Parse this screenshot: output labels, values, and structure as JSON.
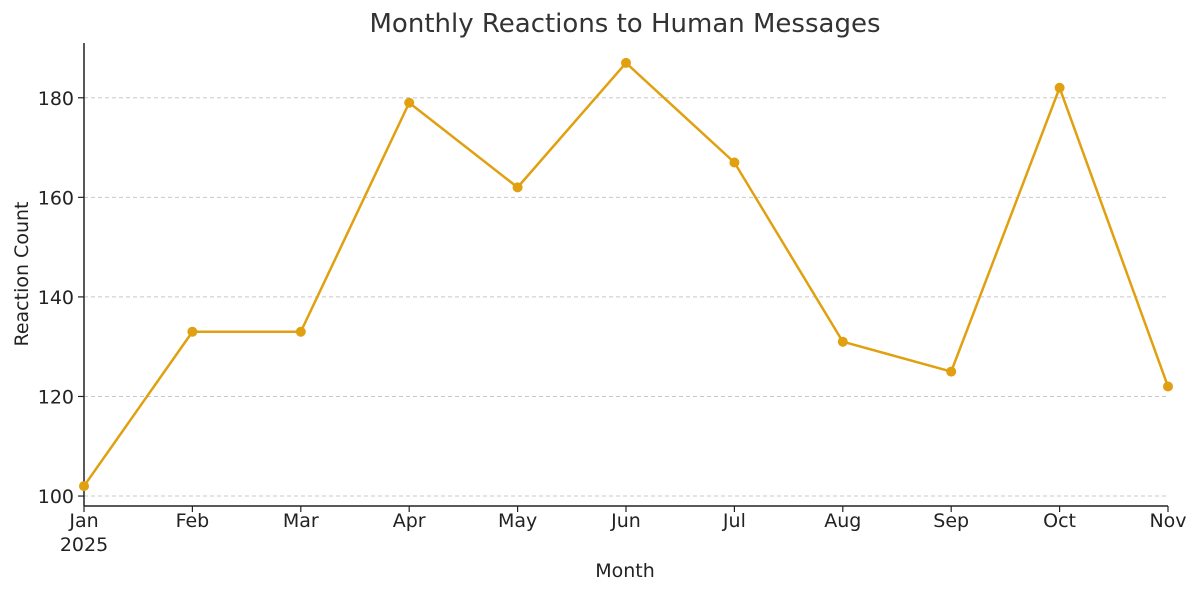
{
  "chart_data": {
    "type": "line",
    "title": "Monthly Reactions to Human Messages",
    "xlabel": "Month",
    "ylabel": "Reaction Count",
    "categories": [
      "Jan",
      "Feb",
      "Mar",
      "Apr",
      "May",
      "Jun",
      "Jul",
      "Aug",
      "Sep",
      "Oct",
      "Nov"
    ],
    "year_label": "2025",
    "series": [
      {
        "values": [
          102,
          133,
          133,
          179,
          162,
          187,
          167,
          131,
          125,
          182,
          122
        ],
        "color": "#E0A010"
      }
    ],
    "ylim": [
      98,
      191
    ],
    "yticks": [
      100,
      120,
      140,
      160,
      180
    ],
    "grid": "horizontal"
  }
}
